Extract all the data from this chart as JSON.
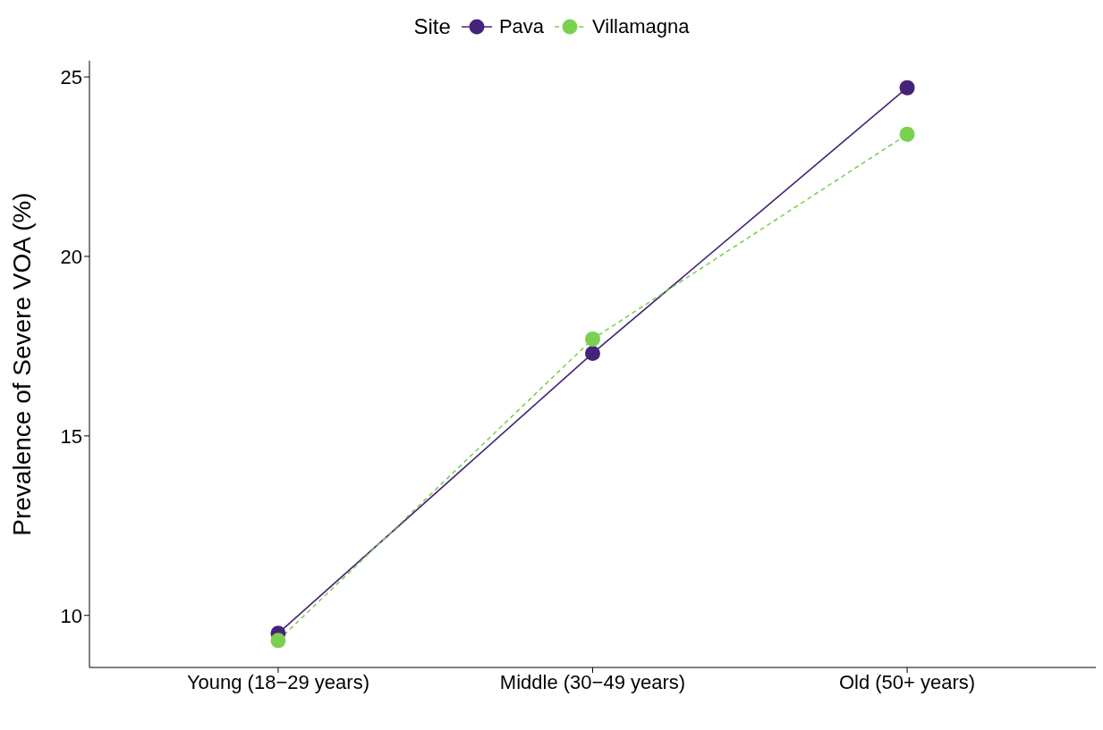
{
  "chart_data": {
    "type": "line",
    "ylabel": "Prevalence of Severe VOA (%)",
    "legend_title": "Site",
    "legend": "top",
    "marker": "circle",
    "grid": false,
    "categories": [
      "Young (18−29 years)",
      "Middle (30−49 years)",
      "Old (50+ years)"
    ],
    "ylim": [
      8.55,
      25.45
    ],
    "yticks": [
      10,
      15,
      20,
      25
    ],
    "series": [
      {
        "name": "Pava",
        "color": "#46237a",
        "values": [
          9.5,
          17.3,
          24.7
        ],
        "line_style": "solid"
      },
      {
        "name": "Villamagna",
        "color": "#7ad151",
        "values": [
          9.3,
          17.7,
          23.4
        ],
        "line_style": "dashed"
      }
    ]
  }
}
